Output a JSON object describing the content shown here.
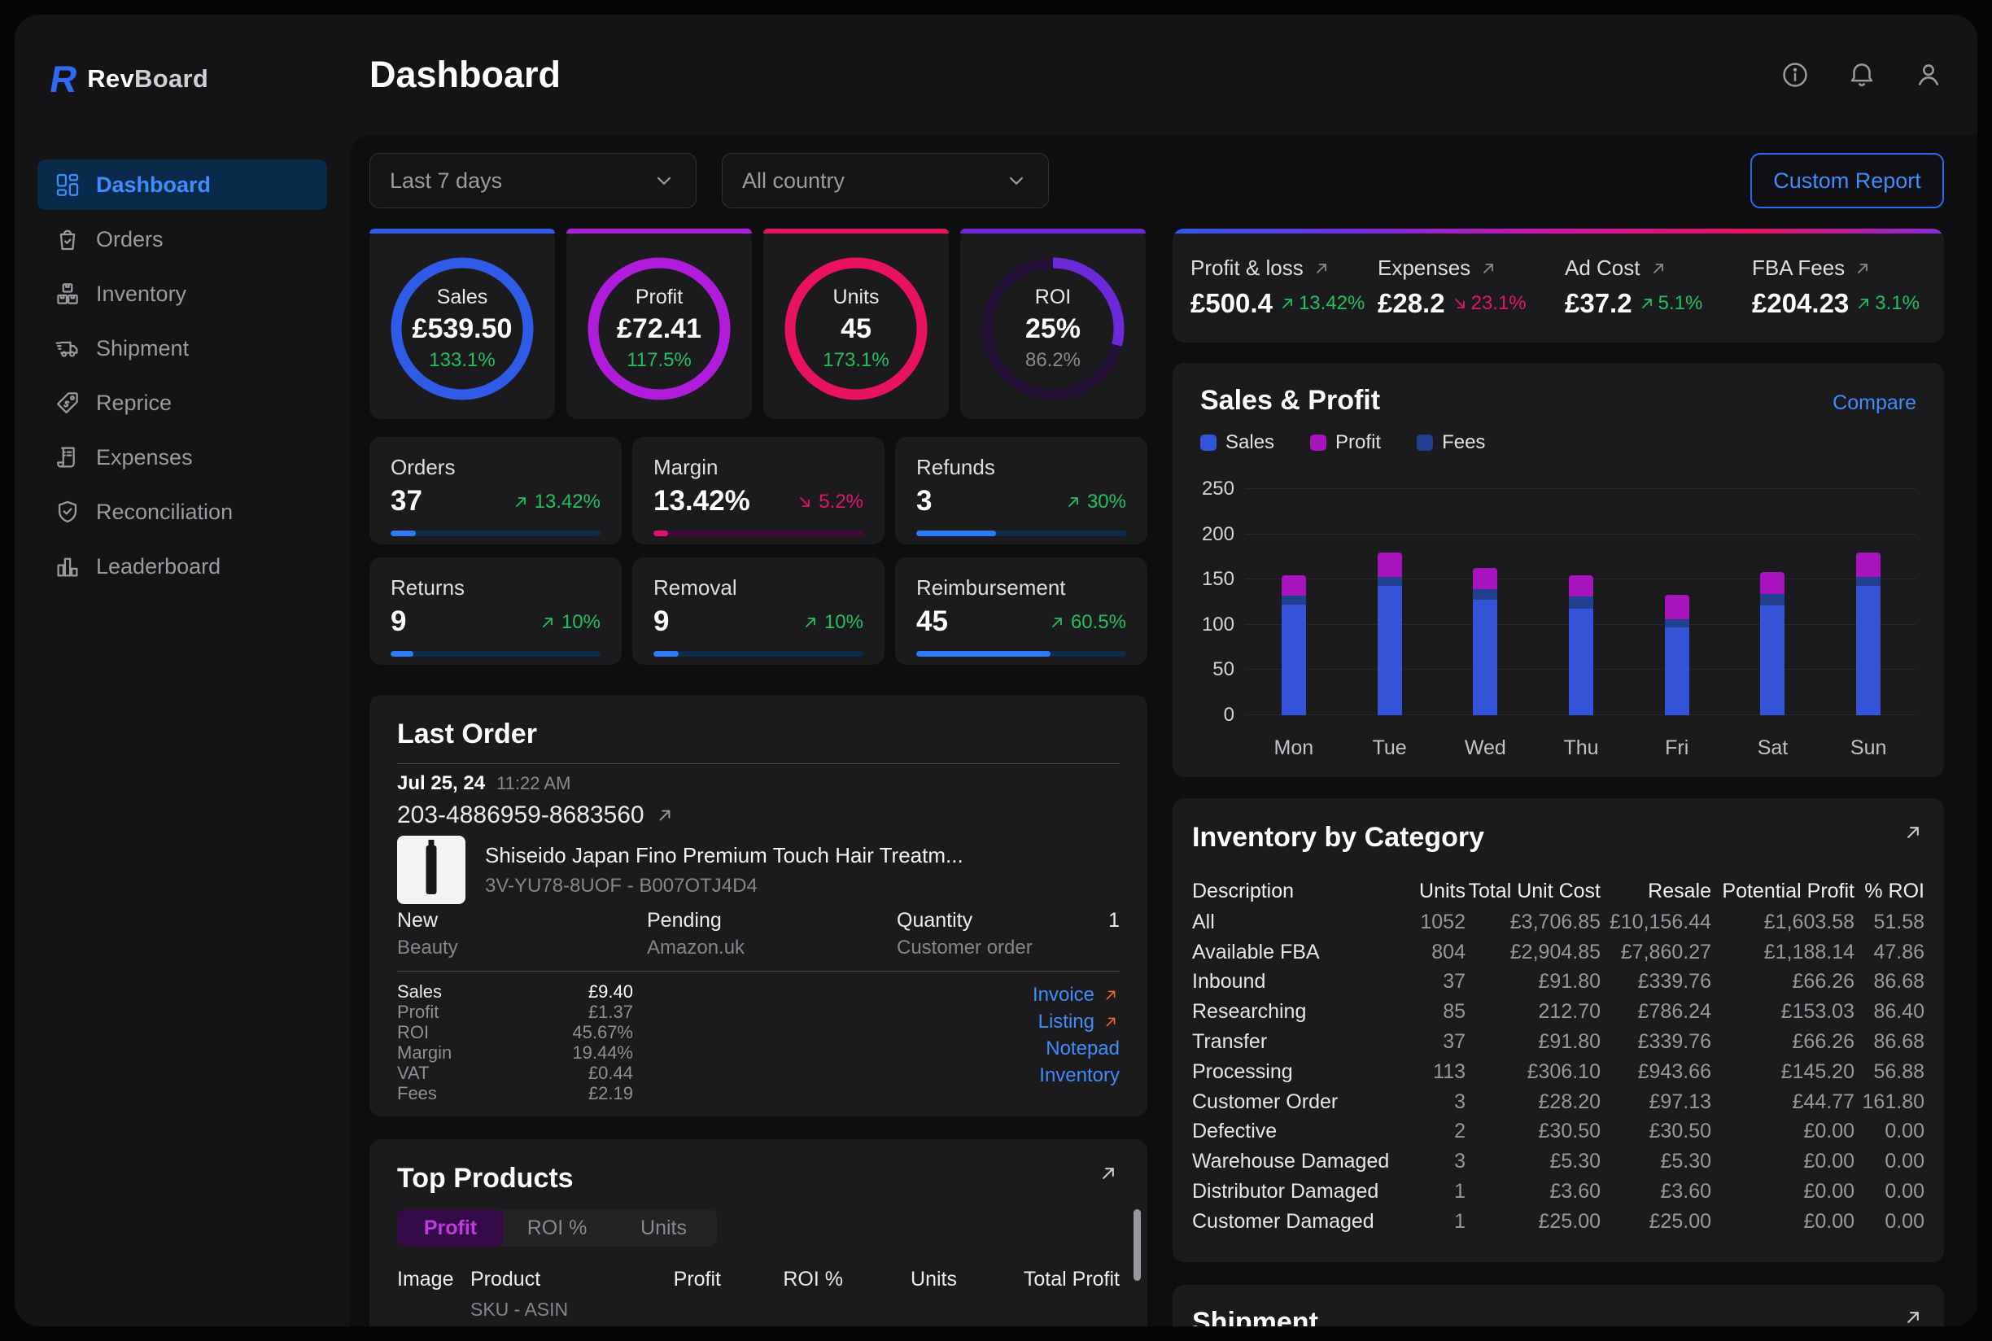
{
  "brand": {
    "name_primary": "Rev",
    "name_secondary": "Board",
    "mark": "R",
    "accent": "#2f6bf0"
  },
  "header": {
    "title": "Dashboard",
    "icons": [
      "info-icon",
      "bell-icon",
      "user-icon"
    ]
  },
  "sidebar": {
    "items": [
      {
        "label": "Dashboard",
        "icon": "dashboard",
        "active": true
      },
      {
        "label": "Orders",
        "icon": "orders",
        "active": false
      },
      {
        "label": "Inventory",
        "icon": "inventory",
        "active": false
      },
      {
        "label": "Shipment",
        "icon": "shipment",
        "active": false
      },
      {
        "label": "Reprice",
        "icon": "reprice",
        "active": false
      },
      {
        "label": "Expenses",
        "icon": "expenses",
        "active": false
      },
      {
        "label": "Reconciliation",
        "icon": "reconciliation",
        "active": false
      },
      {
        "label": "Leaderboard",
        "icon": "leaderboard",
        "active": false
      }
    ]
  },
  "filters": {
    "date_range": "Last 7 days",
    "country": "All country",
    "custom_report_label": "Custom Report"
  },
  "gauges": [
    {
      "label": "Sales",
      "value": "£539.50",
      "change": "133.1%",
      "change_color": "up",
      "color": "#2e5ce8",
      "fill_pct": 100
    },
    {
      "label": "Profit",
      "value": "£72.41",
      "change": "117.5%",
      "change_color": "up",
      "color": "#b11cdc",
      "fill_pct": 100
    },
    {
      "label": "Units",
      "value": "45",
      "change": "173.1%",
      "change_color": "up",
      "color": "#e8125f",
      "fill_pct": 100
    },
    {
      "label": "ROI",
      "value": "25%",
      "change": "86.2%",
      "change_color": "neutral",
      "color": "#6d28d9",
      "track": "#241036",
      "fill_pct": 29
    }
  ],
  "summary": {
    "metrics": [
      {
        "label": "Profit & loss",
        "value": "£500.4",
        "change": "13.42%",
        "direction": "up"
      },
      {
        "label": "Expenses",
        "value": "£28.2",
        "change": "23.1%",
        "direction": "down"
      },
      {
        "label": "Ad Cost",
        "value": "£37.2",
        "change": "5.1%",
        "direction": "up"
      },
      {
        "label": "FBA Fees",
        "value": "£204.23",
        "change": "3.1%",
        "direction": "up"
      }
    ]
  },
  "mini_stats": [
    {
      "label": "Orders",
      "value": "37",
      "change": "13.42%",
      "direction": "up",
      "bar_pct": 12,
      "bar_color": "#2e7bf6",
      "track_color": "#0f2a4a"
    },
    {
      "label": "Margin",
      "value": "13.42%",
      "change": "5.2%",
      "direction": "down",
      "bar_pct": 7,
      "bar_color": "#e1136e",
      "track_color": "#43093c"
    },
    {
      "label": "Refunds",
      "value": "3",
      "change": "30%",
      "direction": "up",
      "bar_pct": 38,
      "bar_color": "#2e7bf6",
      "track_color": "#0f2a4a"
    },
    {
      "label": "Returns",
      "value": "9",
      "change": "10%",
      "direction": "up",
      "bar_pct": 11,
      "bar_color": "#2e7bf6",
      "track_color": "#0f2a4a"
    },
    {
      "label": "Removal",
      "value": "9",
      "change": "10%",
      "direction": "up",
      "bar_pct": 12,
      "bar_color": "#2e7bf6",
      "track_color": "#0f2a4a"
    },
    {
      "label": "Reimbursement",
      "value": "45",
      "change": "60.5%",
      "direction": "up",
      "bar_pct": 64,
      "bar_color": "#2e7bf6",
      "track_color": "#0f2a4a"
    }
  ],
  "last_order": {
    "title": "Last Order",
    "date": "Jul 25, 24",
    "time": "11:22 AM",
    "order_id": "203-4886959-8683560",
    "product": {
      "title": "Shiseido Japan Fino Premium Touch Hair Treatm...",
      "sku_asin": "3V-YU78-8UOF - B007OTJ4D4"
    },
    "attributes": [
      {
        "label": "New",
        "sub": "Beauty",
        "value": ""
      },
      {
        "label": "Pending",
        "sub": "Amazon.uk",
        "value": ""
      },
      {
        "label": "Quantity",
        "sub": "Customer order",
        "value": "1"
      }
    ],
    "metrics": [
      {
        "label": "Sales",
        "value": "£9.40"
      },
      {
        "label": "Profit",
        "value": "£1.37"
      },
      {
        "label": "ROI",
        "value": "45.67%"
      },
      {
        "label": "Margin",
        "value": "19.44%"
      },
      {
        "label": "VAT",
        "value": "£0.44"
      },
      {
        "label": "Fees",
        "value": "£2.19"
      }
    ],
    "links": [
      {
        "label": "Invoice",
        "arrow": true
      },
      {
        "label": "Listing",
        "arrow": true
      },
      {
        "label": "Notepad",
        "arrow": false
      },
      {
        "label": "Inventory",
        "arrow": false
      }
    ]
  },
  "top_products": {
    "title": "Top Products",
    "tabs": [
      {
        "label": "Profit",
        "active": true
      },
      {
        "label": "ROI %",
        "active": false
      },
      {
        "label": "Units",
        "active": false
      }
    ],
    "columns": {
      "image": "Image",
      "product": "Product",
      "product_sub": "SKU - ASIN",
      "profit": "Profit",
      "roi": "ROI %",
      "units": "Units",
      "total_profit": "Total Profit"
    }
  },
  "chart_data": {
    "type": "bar",
    "stacked": true,
    "title": "Sales & Profit",
    "action_label": "Compare",
    "categories": [
      "Mon",
      "Tue",
      "Wed",
      "Thu",
      "Fri",
      "Sat",
      "Sun"
    ],
    "series": [
      {
        "name": "Sales",
        "color": "#3354d8",
        "values": [
          122,
          143,
          128,
          118,
          97,
          121,
          143
        ]
      },
      {
        "name": "Fees",
        "color": "#21408f",
        "values": [
          10,
          10,
          11,
          13,
          9,
          13,
          10
        ]
      },
      {
        "name": "Profit",
        "color": "#a913bd",
        "values": [
          23,
          27,
          24,
          24,
          27,
          24,
          27
        ]
      }
    ],
    "legend": [
      "Sales",
      "Profit",
      "Fees"
    ],
    "ylim": [
      0,
      250
    ],
    "yticks": [
      0,
      50,
      100,
      150,
      200,
      250
    ],
    "grid": true,
    "legend_position": "top-left"
  },
  "inventory": {
    "title": "Inventory by Category",
    "columns": [
      "Description",
      "Units",
      "Total Unit Cost",
      "Resale",
      "Potential Profit",
      "% ROI"
    ],
    "rows": [
      [
        "All",
        "1052",
        "£3,706.85",
        "£10,156.44",
        "£1,603.58",
        "51.58"
      ],
      [
        "Available FBA",
        "804",
        "£2,904.85",
        "£7,860.27",
        "£1,188.14",
        "47.86"
      ],
      [
        "Inbound",
        "37",
        "£91.80",
        "£339.76",
        "£66.26",
        "86.68"
      ],
      [
        "Researching",
        "85",
        "212.70",
        "£786.24",
        "£153.03",
        "86.40"
      ],
      [
        "Transfer",
        "37",
        "£91.80",
        "£339.76",
        "£66.26",
        "86.68"
      ],
      [
        "Processing",
        "113",
        "£306.10",
        "£943.66",
        "£145.20",
        "56.88"
      ],
      [
        "Customer Order",
        "3",
        "£28.20",
        "£97.13",
        "£44.77",
        "161.80"
      ],
      [
        "Defective",
        "2",
        "£30.50",
        "£30.50",
        "£0.00",
        "0.00"
      ],
      [
        "Warehouse Damaged",
        "3",
        "£5.30",
        "£5.30",
        "£0.00",
        "0.00"
      ],
      [
        "Distributor Damaged",
        "1",
        "£3.60",
        "£3.60",
        "£0.00",
        "0.00"
      ],
      [
        "Customer Damaged",
        "1",
        "£25.00",
        "£25.00",
        "£0.00",
        "0.00"
      ]
    ]
  },
  "shipment": {
    "title": "Shipment"
  },
  "colors": {
    "accent_blue": "#3f8cfa",
    "green": "#1fc05e",
    "pink": "#e0156e",
    "orange": "#f2682a",
    "summary_gradient": [
      "#2e5be8",
      "#7a2be0",
      "#d414a8",
      "#e8125f",
      "#8b2be0"
    ]
  }
}
